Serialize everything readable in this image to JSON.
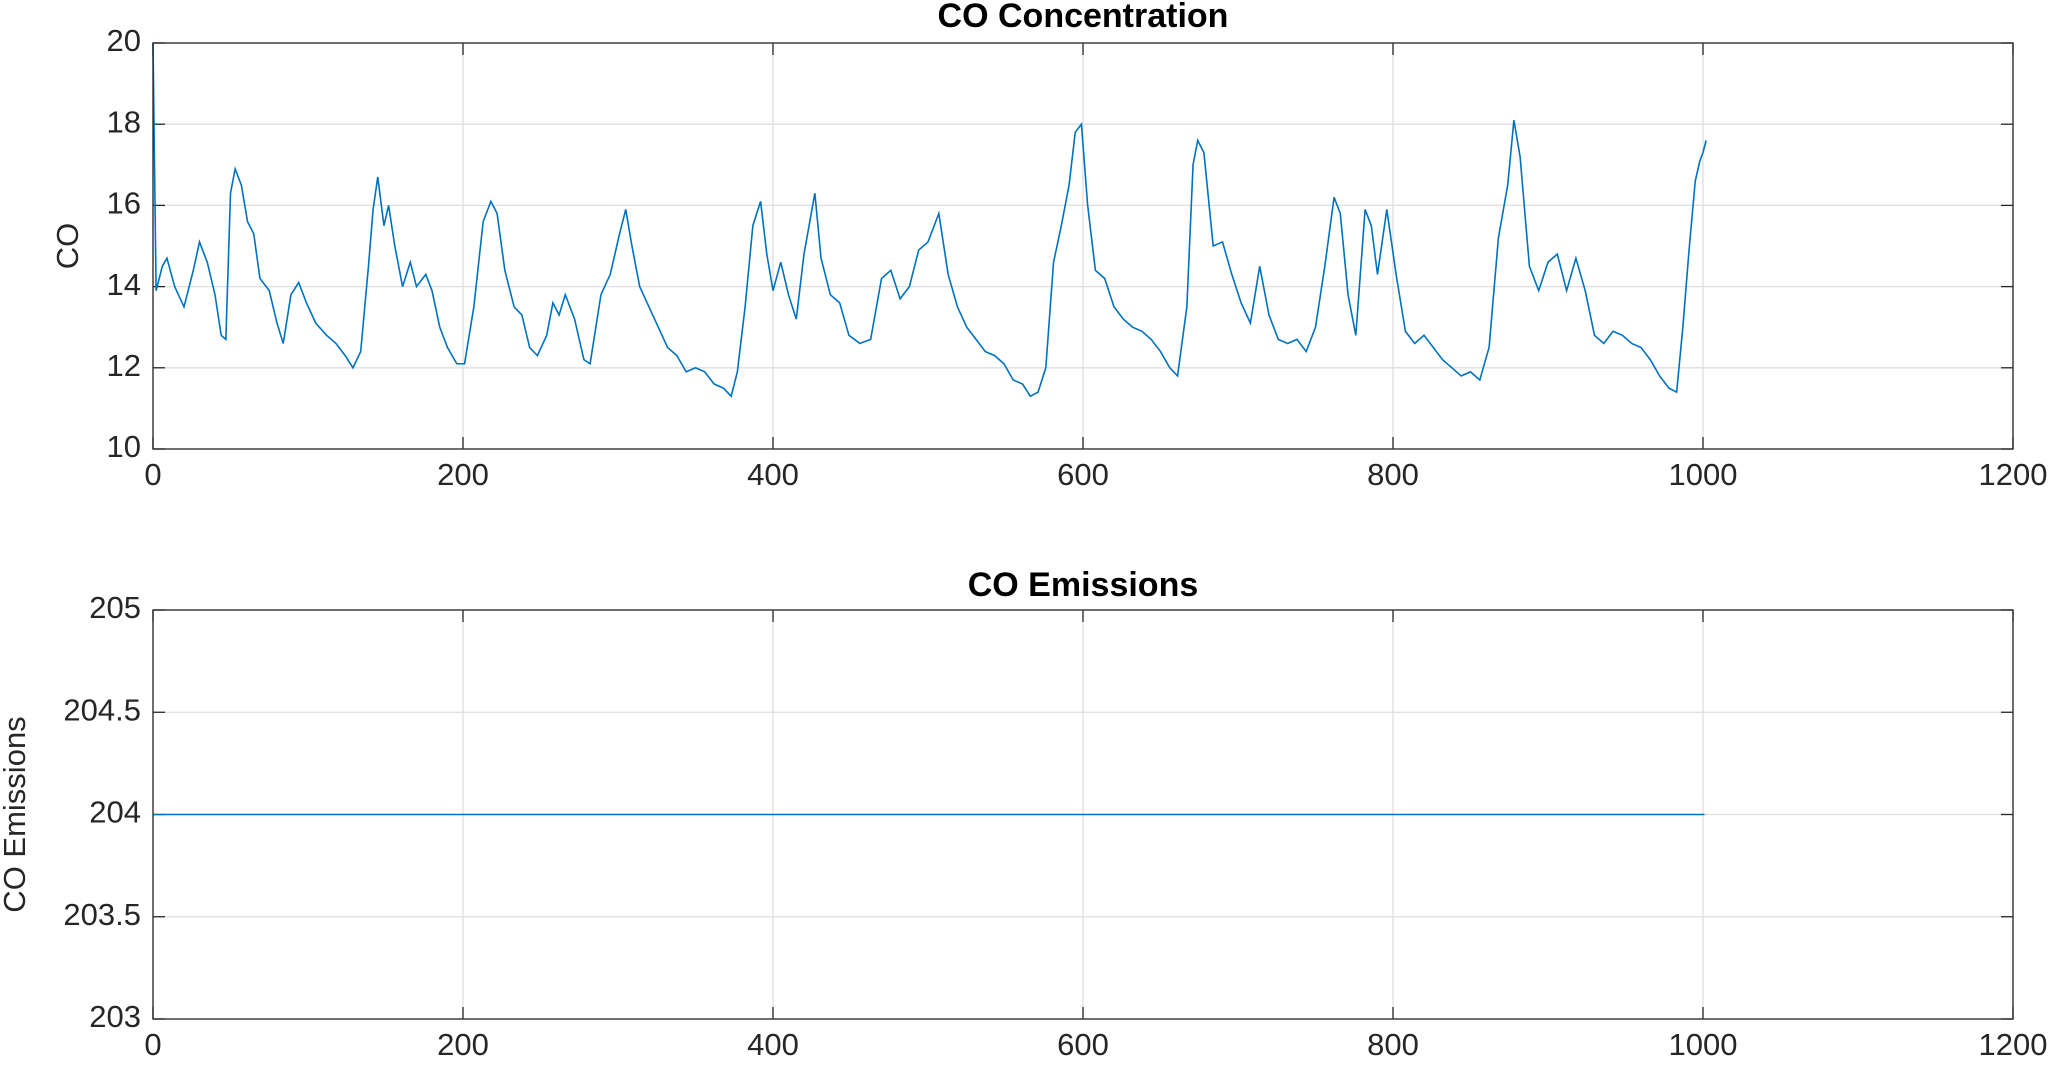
{
  "chart_data": [
    {
      "type": "line",
      "title": "CO Concentration",
      "ylabel": "CO",
      "x": [
        0,
        2,
        6,
        9,
        14,
        20,
        26,
        30,
        35,
        40,
        44,
        47,
        50,
        53,
        57,
        61,
        65,
        69,
        75,
        80,
        84,
        89,
        94,
        99,
        105,
        112,
        118,
        124,
        129,
        134,
        139,
        142,
        145,
        149,
        152,
        156,
        161,
        166,
        170,
        176,
        180,
        185,
        190,
        196,
        201,
        207,
        213,
        218,
        222,
        227,
        233,
        238,
        243,
        248,
        254,
        258,
        262,
        266,
        272,
        278,
        282,
        289,
        295,
        301,
        305,
        309,
        314,
        320,
        326,
        332,
        338,
        344,
        350,
        356,
        362,
        368,
        373,
        377,
        382,
        387,
        392,
        396,
        400,
        405,
        410,
        415,
        420,
        427,
        431,
        437,
        443,
        449,
        456,
        463,
        470,
        476,
        482,
        488,
        494,
        500,
        507,
        513,
        519,
        525,
        531,
        537,
        543,
        549,
        555,
        561,
        566,
        571,
        576,
        581,
        586,
        591,
        595,
        599,
        603,
        608,
        614,
        620,
        626,
        632,
        638,
        644,
        650,
        656,
        661,
        667,
        671,
        674,
        678,
        684,
        690,
        696,
        702,
        708,
        714,
        720,
        726,
        732,
        738,
        744,
        750,
        756,
        762,
        766,
        771,
        776,
        782,
        786,
        790,
        796,
        802,
        808,
        814,
        820,
        826,
        832,
        838,
        844,
        850,
        856,
        862,
        868,
        874,
        878,
        882,
        888,
        894,
        900,
        906,
        912,
        918,
        924,
        930,
        936,
        942,
        948,
        954,
        960,
        966,
        972,
        978,
        983,
        987,
        991,
        995,
        998,
        1000,
        1002
      ],
      "series": [
        {
          "color": "#0072bd",
          "values": [
            20,
            13.9,
            14.5,
            14.7,
            14.0,
            13.5,
            14.4,
            15.1,
            14.6,
            13.8,
            12.8,
            12.7,
            16.3,
            16.9,
            16.5,
            15.6,
            15.3,
            14.2,
            13.9,
            13.1,
            12.6,
            13.8,
            14.1,
            13.6,
            13.1,
            12.8,
            12.6,
            12.3,
            12.0,
            12.4,
            14.5,
            15.9,
            16.7,
            15.5,
            16.0,
            15.0,
            14.0,
            14.6,
            14.0,
            14.3,
            13.9,
            13.0,
            12.5,
            12.1,
            12.1,
            13.5,
            15.6,
            16.1,
            15.8,
            14.4,
            13.5,
            13.3,
            12.5,
            12.3,
            12.8,
            13.6,
            13.3,
            13.8,
            13.2,
            12.2,
            12.1,
            13.8,
            14.3,
            15.3,
            15.9,
            15.0,
            14.0,
            13.5,
            13.0,
            12.5,
            12.3,
            11.9,
            12.0,
            11.9,
            11.6,
            11.5,
            11.3,
            11.9,
            13.5,
            15.5,
            16.1,
            14.8,
            13.9,
            14.6,
            13.8,
            13.2,
            14.8,
            16.3,
            14.7,
            13.8,
            13.6,
            12.8,
            12.6,
            12.7,
            14.2,
            14.4,
            13.7,
            14.0,
            14.9,
            15.1,
            15.8,
            14.3,
            13.5,
            13.0,
            12.7,
            12.4,
            12.3,
            12.1,
            11.7,
            11.6,
            11.3,
            11.4,
            12.0,
            14.6,
            15.5,
            16.5,
            17.8,
            18.0,
            16.0,
            14.4,
            14.2,
            13.5,
            13.2,
            13.0,
            12.9,
            12.7,
            12.4,
            12.0,
            11.8,
            13.5,
            17.0,
            17.6,
            17.3,
            15.0,
            15.1,
            14.3,
            13.6,
            13.1,
            14.5,
            13.3,
            12.7,
            12.6,
            12.7,
            12.4,
            13.0,
            14.5,
            16.2,
            15.8,
            13.8,
            12.8,
            15.9,
            15.5,
            14.3,
            15.9,
            14.3,
            12.9,
            12.6,
            12.8,
            12.5,
            12.2,
            12.0,
            11.8,
            11.9,
            11.7,
            12.5,
            15.2,
            16.5,
            18.1,
            17.2,
            14.5,
            13.9,
            14.6,
            14.8,
            13.9,
            14.7,
            13.9,
            12.8,
            12.6,
            12.9,
            12.8,
            12.6,
            12.5,
            12.2,
            11.8,
            11.5,
            11.4,
            13.0,
            14.9,
            16.6,
            17.1,
            17.3,
            17.6
          ]
        }
      ],
      "xlim": [
        0,
        1200
      ],
      "xticks": [
        0,
        200,
        400,
        600,
        800,
        1000,
        1200
      ],
      "ylim": [
        10,
        20
      ],
      "yticks": [
        10,
        12,
        14,
        16,
        18,
        20
      ],
      "grid": true
    },
    {
      "type": "line",
      "title": "CO Emissions",
      "ylabel": "CO Emissions",
      "x": [
        0,
        1001
      ],
      "series": [
        {
          "color": "#0072bd",
          "values": [
            204,
            204
          ]
        }
      ],
      "xlim": [
        0,
        1200
      ],
      "xticks": [
        0,
        200,
        400,
        600,
        800,
        1000,
        1200
      ],
      "ylim": [
        203,
        205
      ],
      "yticks": [
        203,
        203.5,
        204,
        204.5,
        205
      ],
      "grid": true
    }
  ]
}
